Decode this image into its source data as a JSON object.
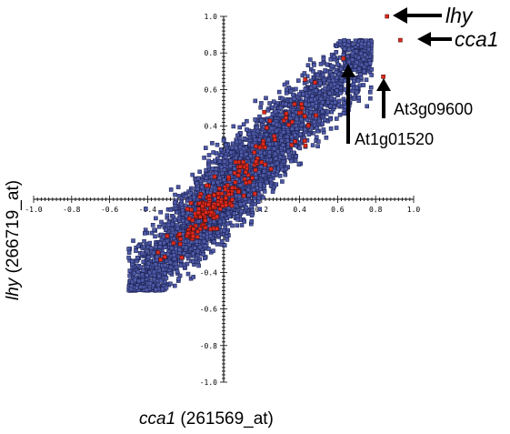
{
  "chart_data": {
    "type": "scatter",
    "xlabel": {
      "gene": "cca1",
      "probe": " (261569_at)"
    },
    "ylabel": {
      "gene": "lhy",
      "probe": " (266719_at)"
    },
    "xlim": [
      -1.0,
      1.0
    ],
    "ylim": [
      -1.0,
      1.0
    ],
    "x_ticks": [
      "-1.0",
      "-0.8",
      "-0.6",
      "-0.4",
      "0.2",
      "0.4",
      "0.6",
      "0.8",
      "1.0"
    ],
    "y_ticks": [
      "1.0",
      "0.8",
      "0.6",
      "0.4",
      "-0.4",
      "-0.6",
      "-0.8",
      "-1.0"
    ],
    "cloud": {
      "description_free": true,
      "blue_color": "#4e5aa7",
      "red_color": "#e02a1e",
      "trend_slope": 1.03,
      "x_range": [
        -0.5,
        0.78
      ],
      "spread": 0.1
    },
    "highlighted_points": [
      {
        "label": "lhy",
        "x": 0.86,
        "y": 1.0,
        "color": "#e02a1e"
      },
      {
        "label": "cca1",
        "x": 0.93,
        "y": 0.87,
        "color": "#e02a1e"
      },
      {
        "label": "At3g09600",
        "x": 0.84,
        "y": 0.67,
        "color": "#e02a1e"
      },
      {
        "label": "At1g01520",
        "x": 0.63,
        "y": 0.77,
        "color": "#e02a1e"
      }
    ],
    "annotations": {
      "lhy": "lhy",
      "cca1": "cca1",
      "at3": "At3g09600",
      "at1": "At1g01520"
    }
  }
}
